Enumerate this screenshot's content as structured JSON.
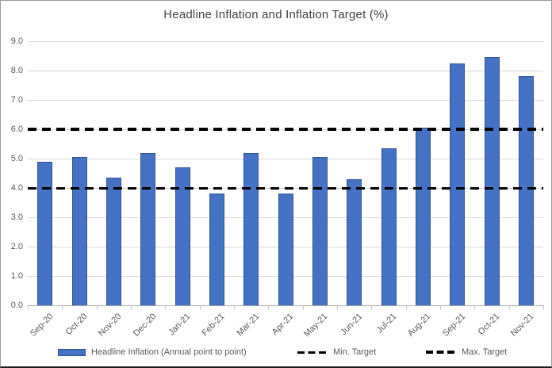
{
  "chart_data": {
    "type": "bar",
    "title": "Headline Inflation and Inflation Target (%)",
    "categories": [
      "Sep-20",
      "Oct-20",
      "Nov-20",
      "Dec-20",
      "Jan-21",
      "Feb-21",
      "Mar-21",
      "Apr-21",
      "May-21",
      "Jun-21",
      "Jul-21",
      "Aug-21",
      "Sep-21",
      "Oct-21",
      "Nov-21"
    ],
    "series": [
      {
        "name": "Headline Inflation (Annual point to point)",
        "type": "bar",
        "values": [
          4.9,
          5.05,
          4.35,
          5.2,
          4.7,
          3.8,
          5.2,
          3.8,
          5.05,
          4.3,
          5.35,
          6.05,
          8.25,
          8.45,
          7.8
        ]
      },
      {
        "name": "Min. Target",
        "type": "dashed-line",
        "value": 4.0
      },
      {
        "name": "Max. Target",
        "type": "dashed-line",
        "value": 6.0
      }
    ],
    "xlabel": "",
    "ylabel": "",
    "ylim": [
      0,
      9
    ],
    "ytick_step": 1,
    "ytick_labels": [
      "0.0",
      "1.0",
      "2.0",
      "3.0",
      "4.0",
      "5.0",
      "6.0",
      "7.0",
      "8.0",
      "9.0"
    ],
    "grid": "horizontal",
    "legend_position": "bottom"
  },
  "colors": {
    "bar_fill": "#4472C4",
    "bar_border": "#2F5597",
    "gridline": "#D9D9D9",
    "axis_line": "#A6A6A6",
    "target_line": "#000000",
    "title_text": "#3F3F3F",
    "axis_text": "#595959",
    "background": "#FFFFFF"
  },
  "legend": {
    "items": [
      {
        "label": "Headline Inflation (Annual point to point)",
        "swatch": "bar"
      },
      {
        "label": "Min. Target",
        "swatch": "dash-thin"
      },
      {
        "label": "Max. Target",
        "swatch": "dash-thick"
      }
    ]
  }
}
